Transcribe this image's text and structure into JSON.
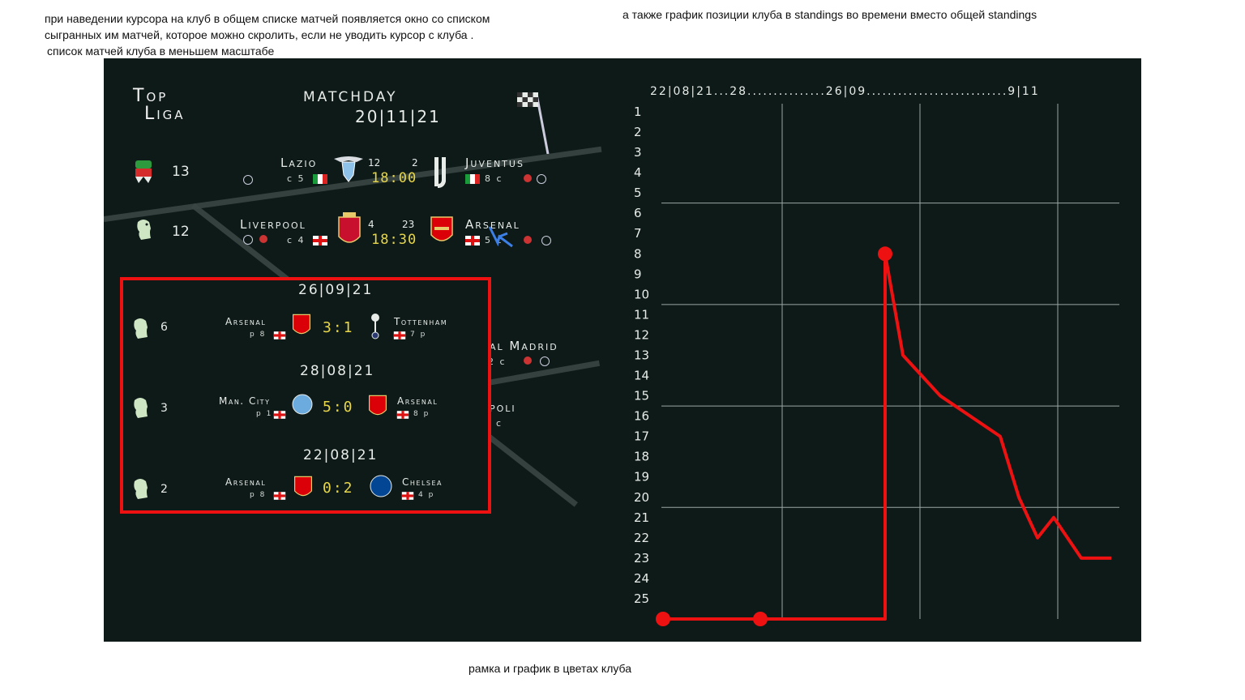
{
  "notes": {
    "top_left_line1": "при наведении курсора на клуб в общем списке матчей появляется окно со списком",
    "top_left_line2": "сыгранных им матчей, которое можно скролить, если не уводить курсор с клуба .",
    "top_left_line3": "список матчей клуба в меньшем масштабе",
    "top_right": "а также график позиции клуба в standings во времени вместо общей standings",
    "bottom": "рамка и график в цветах клуба"
  },
  "header": {
    "logo_top": "Top",
    "logo_bottom": "Liga",
    "matchday_label": "MATCHDAY",
    "matchday_date": "20|11|21"
  },
  "matches": [
    {
      "league_pos": "13",
      "home": {
        "name": "Lazio",
        "sub": "c 5",
        "flag": "IT"
      },
      "away": {
        "name": "Juventus",
        "sub": "8 c",
        "flag": "IT"
      },
      "home_num": "12",
      "away_num": "2",
      "time": "18:00"
    },
    {
      "league_pos": "12",
      "home": {
        "name": "Liverpool",
        "sub": "c 4",
        "flag": "EN"
      },
      "away": {
        "name": "Arsenal",
        "sub": "5 c",
        "flag": "EN"
      },
      "home_num": "4",
      "away_num": "23",
      "time": "18:30"
    }
  ],
  "hidden_fragments": {
    "madrid": "al Madrid",
    "madrid_sub": "2 c",
    "napoli": "poli",
    "napoli_sub": "c"
  },
  "popup": {
    "border_color": "#ee1111",
    "matches": [
      {
        "date": "26|09|21",
        "pos": "6",
        "home": "Arsenal",
        "home_sub": "p 8",
        "score": "3:1",
        "away": "Tottenham",
        "away_sub": "7 p"
      },
      {
        "date": "28|08|21",
        "pos": "3",
        "home": "Man. City",
        "home_sub": "p 1",
        "score": "5:0",
        "away": "Arsenal",
        "away_sub": "8 p"
      },
      {
        "date": "22|08|21",
        "pos": "2",
        "home": "Arsenal",
        "home_sub": "p 8",
        "score": "0:2",
        "away": "Chelsea",
        "away_sub": "4 p"
      }
    ]
  },
  "chart_data": {
    "type": "line",
    "title": "",
    "x_timeline_label": "22|08|21...28...............26|09...........................9|11",
    "x": [
      "22|08|21",
      "28|08|21",
      "26|09|21",
      "",
      "",
      "",
      "",
      "",
      "",
      "9|11"
    ],
    "series": [
      {
        "values": [
          26,
          26,
          8,
          13,
          15,
          17,
          20,
          22,
          21,
          23
        ]
      }
    ],
    "y_ticks": [
      "1",
      "2",
      "3",
      "4",
      "5",
      "6",
      "7",
      "8",
      "9",
      "10",
      "11",
      "12",
      "13",
      "14",
      "15",
      "16",
      "17",
      "18",
      "19",
      "20",
      "21",
      "22",
      "23",
      "24",
      "25"
    ],
    "ylim": [
      1,
      26
    ],
    "y_inverted": true,
    "grid": true,
    "line_color": "#ee1111"
  }
}
